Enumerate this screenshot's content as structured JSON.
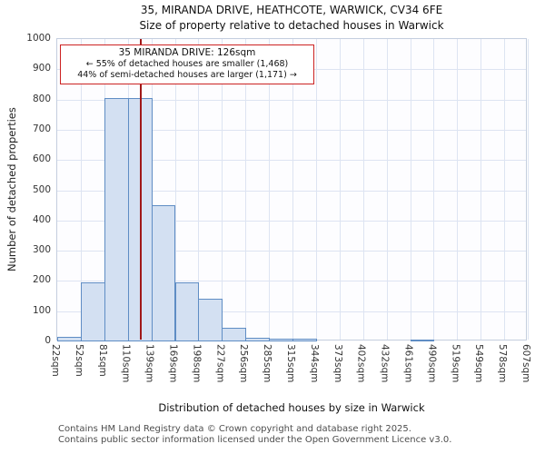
{
  "title_line1": "35, MIRANDA DRIVE, HEATHCOTE, WARWICK, CV34 6FE",
  "title_line2": "Size of property relative to detached houses in Warwick",
  "annotation": {
    "line1": "35 MIRANDA DRIVE: 126sqm",
    "line2": "← 55% of detached houses are smaller (1,468)",
    "line3": "44% of semi-detached houses are larger (1,171) →"
  },
  "footer_line1": "Contains HM Land Registry data © Crown copyright and database right 2025.",
  "footer_line2": "Contains public sector information licensed under the Open Government Licence v3.0.",
  "chart_data": {
    "type": "bar",
    "title": "35, MIRANDA DRIVE, HEATHCOTE, WARWICK, CV34 6FE — Size of property relative to detached houses in Warwick",
    "xlabel": "Distribution of detached houses by size in Warwick",
    "ylabel": "Number of detached properties",
    "bin_labels": [
      "22sqm",
      "52sqm",
      "81sqm",
      "110sqm",
      "139sqm",
      "169sqm",
      "198sqm",
      "227sqm",
      "256sqm",
      "285sqm",
      "315sqm",
      "344sqm",
      "373sqm",
      "402sqm",
      "432sqm",
      "461sqm",
      "490sqm",
      "519sqm",
      "549sqm",
      "578sqm",
      "607sqm"
    ],
    "bin_edges": [
      22,
      52,
      81,
      110,
      139,
      169,
      198,
      227,
      256,
      285,
      315,
      344,
      373,
      402,
      432,
      461,
      490,
      519,
      549,
      578,
      607
    ],
    "values": [
      15,
      195,
      805,
      805,
      450,
      195,
      140,
      45,
      12,
      8,
      8,
      0,
      0,
      0,
      0,
      5,
      0,
      0,
      0,
      0
    ],
    "ylim": [
      0,
      1000
    ],
    "ytick_step": 100,
    "grid": true,
    "legend": "none",
    "marker": {
      "value": 126,
      "label": "126sqm",
      "color": "#a01818"
    },
    "bar_fill": "#d3e0f2",
    "bar_border": "#5f8dc4"
  }
}
